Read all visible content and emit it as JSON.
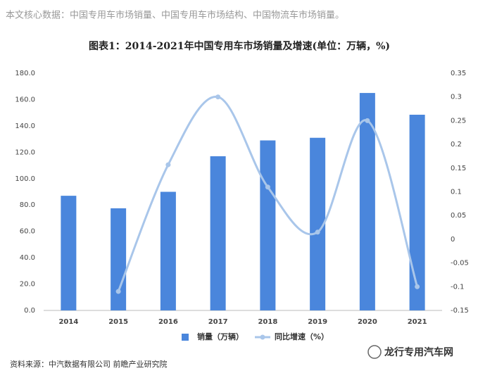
{
  "intro": "本文核心数据：中国专用车市场销量、中国专用车市场结构、中国物流车市场销量。",
  "chart_data": {
    "type": "bar",
    "title": "图表1：2014-2021年中国专用车市场销量及增速(单位：万辆，%)",
    "categories": [
      "2014",
      "2015",
      "2016",
      "2017",
      "2018",
      "2019",
      "2020",
      "2021"
    ],
    "series": [
      {
        "name": "销量（万辆）",
        "type": "bar",
        "color": "#4a86dc",
        "values": [
          87,
          77.5,
          90,
          117,
          129,
          131,
          165,
          148.5
        ]
      },
      {
        "name": "同比增速（%）",
        "type": "line",
        "axis": "y2",
        "color": "#a9c6ea",
        "values": [
          null,
          -0.11,
          0.157,
          0.3,
          0.11,
          0.015,
          0.25,
          -0.1
        ]
      }
    ],
    "ylim": [
      0,
      180
    ],
    "yticks": [
      {
        "value": 0,
        "label": "0.0"
      },
      {
        "value": 20,
        "label": "20.0"
      },
      {
        "value": 40,
        "label": "40.0"
      },
      {
        "value": 60,
        "label": "60.0"
      },
      {
        "value": 80,
        "label": "80.0"
      },
      {
        "value": 100,
        "label": "100.0"
      },
      {
        "value": 120,
        "label": "120.0"
      },
      {
        "value": 140,
        "label": "140.0"
      },
      {
        "value": 160,
        "label": "160.0"
      },
      {
        "value": 180,
        "label": "180.0"
      }
    ],
    "y2lim": [
      -0.15,
      0.35
    ],
    "y2ticks": [
      -0.15,
      -0.1,
      -0.05,
      0,
      0.05,
      0.1,
      0.15,
      0.2,
      0.25,
      0.3,
      0.35
    ],
    "legend": "bottom",
    "source": "资料来源：中汽数据有限公司 前瞻产业研究院"
  },
  "watermark": "龙行专用汽车网"
}
